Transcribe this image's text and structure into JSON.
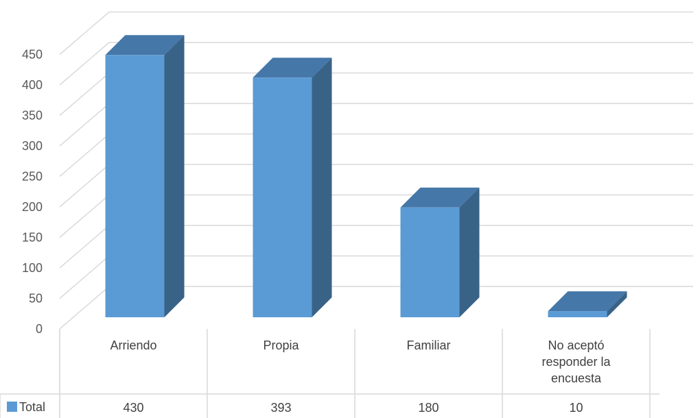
{
  "chart_data": {
    "type": "bar",
    "style": "3d-column-with-data-table",
    "categories": [
      "Arriendo",
      "Propia",
      "Familiar",
      "No aceptó responder la encuesta"
    ],
    "category_lines": [
      [
        "Arriendo"
      ],
      [
        "Propia"
      ],
      [
        "Familiar"
      ],
      [
        "No aceptó",
        "responder la",
        "encuesta"
      ]
    ],
    "series": [
      {
        "name": "Total",
        "values": [
          430,
          393,
          180,
          10
        ],
        "color": "#5B9BD5"
      }
    ],
    "table_values": [
      "430",
      "393",
      "180",
      "10"
    ],
    "yticks": [
      0,
      50,
      100,
      150,
      200,
      250,
      300,
      350,
      400,
      450
    ],
    "ylim": [
      0,
      450
    ],
    "grid": true,
    "legend": "data-table-left",
    "colors": {
      "front": "#5B9BD5",
      "side": "#386387",
      "top": "#4577A8",
      "grid": "#D9D9D9",
      "text": "#595959"
    }
  }
}
